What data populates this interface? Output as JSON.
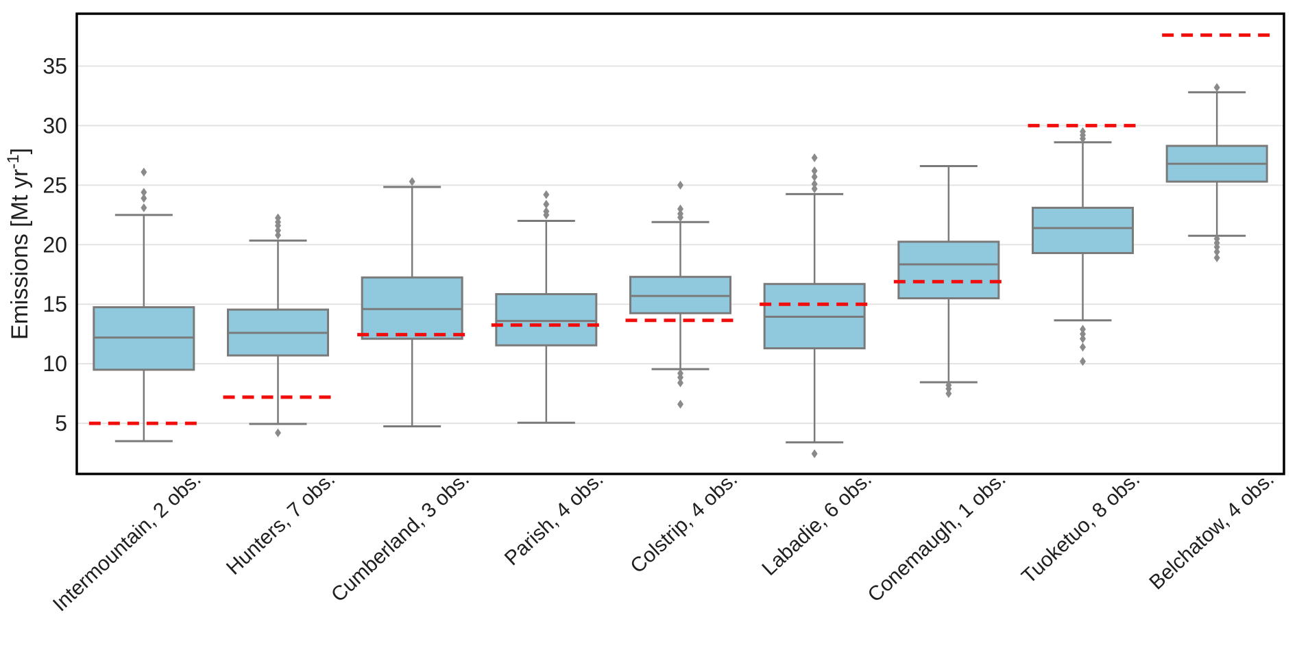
{
  "chart_data": {
    "type": "boxplot",
    "title": "",
    "ylabel": "Emissions [Mt yr⁻¹]",
    "ylabel_base": "Emissions [Mt yr",
    "ylabel_sup": "-1",
    "ylabel_tail": "]",
    "yticks": [
      5,
      10,
      15,
      20,
      25,
      30,
      35
    ],
    "ylim": [
      0.75,
      39.4
    ],
    "grid": "horizontal",
    "legend_position": "none",
    "categories": [
      {
        "label": "Intermountain, 2 obs.",
        "whislo": 3.5,
        "q1": 9.5,
        "med": 12.2,
        "q3": 14.75,
        "whishi": 22.5,
        "outliers_high": [
          23.1,
          23.9,
          24.4,
          26.1
        ],
        "outliers_low": [],
        "red_dashed_value": 5.0
      },
      {
        "label": "Hunters, 7 obs.",
        "whislo": 4.95,
        "q1": 10.7,
        "med": 12.6,
        "q3": 14.55,
        "whishi": 20.35,
        "outliers_high": [
          20.8,
          21.2,
          21.6,
          21.9,
          22.25
        ],
        "outliers_low": [
          4.2
        ],
        "red_dashed_value": 7.2
      },
      {
        "label": "Cumberland, 3 obs.",
        "whislo": 4.75,
        "q1": 12.1,
        "med": 14.6,
        "q3": 17.25,
        "whishi": 24.85,
        "outliers_high": [
          25.3
        ],
        "outliers_low": [],
        "red_dashed_value": 12.45
      },
      {
        "label": "Parish, 4 obs.",
        "whislo": 5.05,
        "q1": 11.55,
        "med": 13.6,
        "q3": 15.85,
        "whishi": 22.0,
        "outliers_high": [
          22.5,
          22.8,
          23.4,
          24.2
        ],
        "outliers_low": [],
        "red_dashed_value": 13.25
      },
      {
        "label": "Colstrip, 4 obs.",
        "whislo": 9.55,
        "q1": 14.25,
        "med": 15.7,
        "q3": 17.3,
        "whishi": 21.9,
        "outliers_high": [
          22.3,
          22.6,
          23.0,
          25.0
        ],
        "outliers_low": [
          9.2,
          8.85,
          8.4,
          6.6
        ],
        "red_dashed_value": 13.65
      },
      {
        "label": "Labadie, 6 obs.",
        "whislo": 3.4,
        "q1": 11.3,
        "med": 13.95,
        "q3": 16.7,
        "whishi": 24.25,
        "outliers_high": [
          24.7,
          25.1,
          25.7,
          26.2,
          27.3
        ],
        "outliers_low": [
          2.45
        ],
        "red_dashed_value": 15.0
      },
      {
        "label": "Conemaugh, 1 obs.",
        "whislo": 8.45,
        "q1": 15.5,
        "med": 18.35,
        "q3": 20.25,
        "whishi": 26.6,
        "outliers_high": [],
        "outliers_low": [
          8.2,
          7.9,
          7.5
        ],
        "red_dashed_value": 16.9
      },
      {
        "label": "Tuoketuo, 8 obs.",
        "whislo": 13.65,
        "q1": 19.3,
        "med": 21.4,
        "q3": 23.1,
        "whishi": 28.6,
        "outliers_high": [
          28.9,
          29.2,
          29.5
        ],
        "outliers_low": [
          12.9,
          12.5,
          12.1,
          11.4,
          10.2
        ],
        "red_dashed_value": 30.0
      },
      {
        "label": "Belchatow, 4 obs.",
        "whislo": 20.75,
        "q1": 25.3,
        "med": 26.8,
        "q3": 28.3,
        "whishi": 32.8,
        "outliers_high": [
          33.2
        ],
        "outliers_low": [
          20.5,
          20.15,
          19.8,
          19.4,
          18.9
        ],
        "red_dashed_value": 37.6
      }
    ]
  },
  "colors": {
    "box_fill": "#90C9DE",
    "box_edge": "#7A7A7A",
    "whisker": "#7A7A7A",
    "outlier": "#8A8A8A",
    "red_dashed": "#F20D0D",
    "gridline": "#E3E3E3",
    "axis_border": "#000000",
    "text": "#1F1F1F"
  }
}
